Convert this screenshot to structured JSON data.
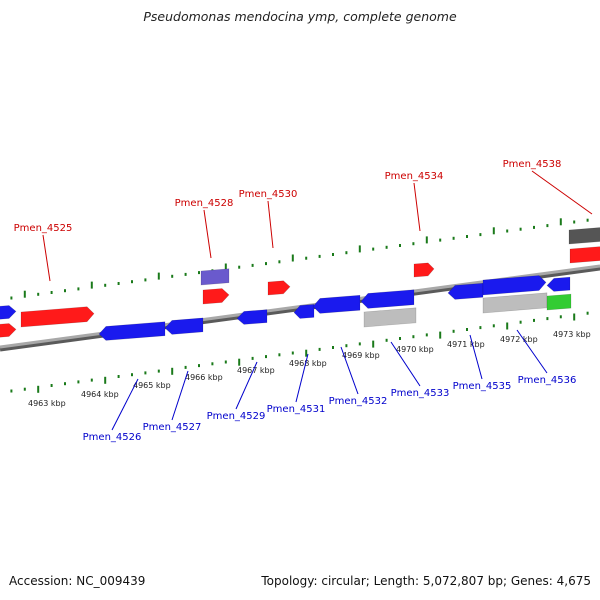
{
  "title": "Pseudomonas mendocina ymp, complete genome",
  "footer": {
    "accession": "Accession: NC_009439",
    "summary": "Topology: circular; Length: 5,072,807 bp; Genes: 4,675"
  },
  "colors": {
    "forward_label": "#cc0000",
    "reverse_label": "#0000cc",
    "tick": "#1a7a1a",
    "backbone": "#808080",
    "gene_red": "#ff1a1a",
    "gene_blue": "#1a1aee",
    "gene_gray": "#bdbdbd",
    "gene_dark": "#555555",
    "gene_purple": "#6a5acd",
    "gene_green": "#33cc33"
  },
  "scale": {
    "unit": "kbp",
    "ticks": [
      {
        "kbp": 4963,
        "label": "4963 kbp"
      },
      {
        "kbp": 4964,
        "label": "4964 kbp"
      },
      {
        "kbp": 4965,
        "label": "4965 kbp"
      },
      {
        "kbp": 4966,
        "label": "4966 kbp"
      },
      {
        "kbp": 4967,
        "label": "4967 kbp"
      },
      {
        "kbp": 4968,
        "label": "4968 kbp"
      },
      {
        "kbp": 4969,
        "label": "4969 kbp"
      },
      {
        "kbp": 4970,
        "label": "4970 kbp"
      },
      {
        "kbp": 4971,
        "label": "4971 kbp"
      },
      {
        "kbp": 4972,
        "label": "4972 kbp"
      },
      {
        "kbp": 4973,
        "label": "4973 kbp"
      }
    ]
  },
  "forward_labels": [
    {
      "id": "Pmen_4525",
      "label": "Pmen_4525"
    },
    {
      "id": "Pmen_4528",
      "label": "Pmen_4528"
    },
    {
      "id": "Pmen_4530",
      "label": "Pmen_4530"
    },
    {
      "id": "Pmen_4534",
      "label": "Pmen_4534"
    },
    {
      "id": "Pmen_4538",
      "label": "Pmen_4538"
    }
  ],
  "reverse_labels": [
    {
      "id": "Pmen_4526",
      "label": "Pmen_4526"
    },
    {
      "id": "Pmen_4527",
      "label": "Pmen_4527"
    },
    {
      "id": "Pmen_4529",
      "label": "Pmen_4529"
    },
    {
      "id": "Pmen_4531",
      "label": "Pmen_4531"
    },
    {
      "id": "Pmen_4532",
      "label": "Pmen_4532"
    },
    {
      "id": "Pmen_4533",
      "label": "Pmen_4533"
    },
    {
      "id": "Pmen_4535",
      "label": "Pmen_4535"
    },
    {
      "id": "Pmen_4536",
      "label": "Pmen_4536"
    }
  ]
}
